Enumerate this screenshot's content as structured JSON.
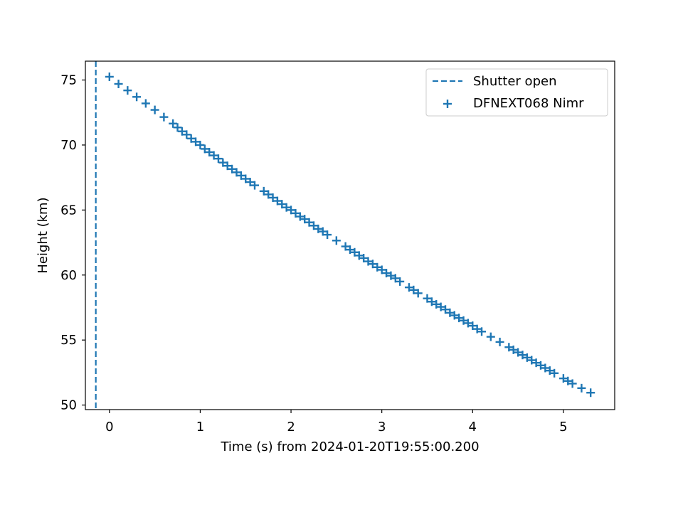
{
  "chart_data": {
    "type": "scatter",
    "xlabel": "Time (s) from 2024-01-20T19:55:00.200",
    "ylabel": "Height (km)",
    "xlim": [
      -0.265,
      5.565
    ],
    "ylim": [
      49.65,
      76.45
    ],
    "xticks": [
      0,
      1,
      2,
      3,
      4,
      5
    ],
    "yticks": [
      50,
      55,
      60,
      65,
      70,
      75
    ],
    "grid": false,
    "legend_position": "top-right",
    "colors": {
      "series": "#1f77b4",
      "axes": "#000000",
      "background": "#ffffff"
    },
    "vline": {
      "name": "Shutter open",
      "x": -0.15,
      "style": "dashed"
    },
    "series": [
      {
        "name": "DFNEXT068 Nimr",
        "marker": "plus",
        "x": [
          0,
          0.1,
          0.2,
          0.3,
          0.4,
          0.5,
          0.6,
          0.7,
          0.75,
          0.8,
          0.85,
          0.9,
          0.95,
          1.0,
          1.05,
          1.1,
          1.15,
          1.2,
          1.25,
          1.3,
          1.35,
          1.4,
          1.45,
          1.5,
          1.55,
          1.6,
          1.7,
          1.75,
          1.8,
          1.85,
          1.9,
          1.95,
          2.0,
          2.05,
          2.1,
          2.15,
          2.2,
          2.25,
          2.3,
          2.35,
          2.4,
          2.5,
          2.6,
          2.65,
          2.7,
          2.75,
          2.8,
          2.85,
          2.9,
          2.95,
          3.0,
          3.05,
          3.1,
          3.15,
          3.2,
          3.3,
          3.35,
          3.4,
          3.5,
          3.55,
          3.6,
          3.65,
          3.7,
          3.75,
          3.8,
          3.85,
          3.9,
          3.95,
          4.0,
          4.05,
          4.1,
          4.2,
          4.3,
          4.4,
          4.45,
          4.5,
          4.55,
          4.6,
          4.65,
          4.7,
          4.75,
          4.8,
          4.85,
          4.9,
          5.0,
          5.05,
          5.1,
          5.2,
          5.3
        ],
        "y": [
          75.25,
          74.7,
          74.2,
          73.7,
          73.2,
          72.7,
          72.15,
          71.65,
          71.35,
          71.05,
          70.8,
          70.5,
          70.25,
          70.0,
          69.7,
          69.45,
          69.2,
          68.95,
          68.65,
          68.4,
          68.15,
          67.9,
          67.65,
          67.4,
          67.15,
          66.9,
          66.45,
          66.2,
          65.95,
          65.7,
          65.45,
          65.2,
          65.0,
          64.75,
          64.5,
          64.3,
          64.05,
          63.8,
          63.55,
          63.35,
          63.1,
          62.65,
          62.2,
          61.95,
          61.75,
          61.5,
          61.3,
          61.05,
          60.85,
          60.6,
          60.4,
          60.15,
          59.95,
          59.75,
          59.5,
          59.05,
          58.85,
          58.6,
          58.2,
          57.95,
          57.75,
          57.55,
          57.35,
          57.1,
          56.9,
          56.7,
          56.5,
          56.3,
          56.1,
          55.85,
          55.65,
          55.25,
          54.85,
          54.45,
          54.25,
          54.05,
          53.85,
          53.65,
          53.45,
          53.25,
          53.05,
          52.85,
          52.65,
          52.45,
          52.05,
          51.85,
          51.65,
          51.3,
          50.95
        ]
      }
    ]
  }
}
